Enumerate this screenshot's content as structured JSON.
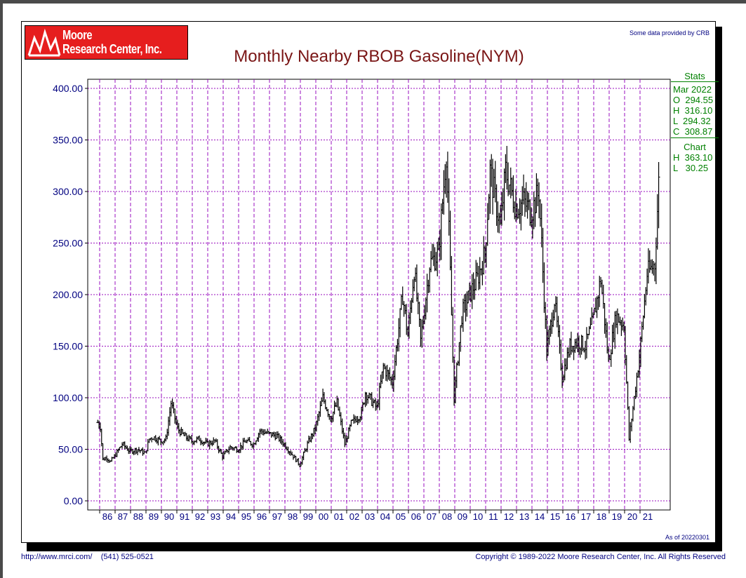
{
  "header": {
    "logo_line1": "Moore",
    "logo_line2": "Research Center, Inc.",
    "title": "Monthly Nearby RBOB Gasoline(NYM)",
    "credit": "Some data provided by CRB",
    "as_of": "As of 20220301"
  },
  "footer": {
    "url": "http://www.mrci.com/",
    "phone": "(541) 525-0521",
    "copyright": "Copyright © 1989-2022 Moore Research Center, Inc. All Rights Reserved"
  },
  "stats": {
    "title": "Stats",
    "period": "Mar 2022",
    "open": "O  294.55",
    "high": "H  316.10",
    "low": "L  294.32",
    "close": "C  308.87",
    "chart_label": "Chart",
    "chart_high": "H  363.10",
    "chart_low": "L   30.25"
  },
  "colors": {
    "title": "#7a1616",
    "axis_text": "#000080",
    "grid": "#9a0fbf",
    "bars": "#000000",
    "stats": "#008000",
    "logo_bg": "#e61e1e"
  },
  "chart_data": {
    "type": "ohlc",
    "title": "Monthly Nearby RBOB Gasoline(NYM)",
    "xlabel": "",
    "ylabel": "",
    "ylim": [
      0,
      400
    ],
    "y_ticks": [
      "0.00",
      "50.00",
      "100.00",
      "150.00",
      "200.00",
      "250.00",
      "300.00",
      "350.00",
      "400.00"
    ],
    "x_ticks": [
      "86",
      "87",
      "88",
      "89",
      "90",
      "91",
      "92",
      "93",
      "94",
      "95",
      "96",
      "97",
      "98",
      "99",
      "00",
      "01",
      "02",
      "03",
      "04",
      "05",
      "06",
      "07",
      "08",
      "09",
      "10",
      "11",
      "12",
      "13",
      "14",
      "15",
      "16",
      "17",
      "18",
      "19",
      "20",
      "21"
    ],
    "grid": true,
    "series_approx_monthly_close": [
      [
        1985,
        11,
        76
      ],
      [
        1986,
        1,
        72
      ],
      [
        1986,
        3,
        40
      ],
      [
        1986,
        6,
        42
      ],
      [
        1986,
        9,
        38
      ],
      [
        1987,
        1,
        45
      ],
      [
        1987,
        6,
        55
      ],
      [
        1987,
        12,
        48
      ],
      [
        1988,
        6,
        50
      ],
      [
        1988,
        12,
        46
      ],
      [
        1989,
        3,
        60
      ],
      [
        1989,
        6,
        62
      ],
      [
        1989,
        12,
        58
      ],
      [
        1990,
        4,
        60
      ],
      [
        1990,
        8,
        95
      ],
      [
        1990,
        10,
        85
      ],
      [
        1991,
        1,
        70
      ],
      [
        1991,
        6,
        63
      ],
      [
        1991,
        12,
        58
      ],
      [
        1992,
        6,
        60
      ],
      [
        1992,
        12,
        55
      ],
      [
        1993,
        6,
        58
      ],
      [
        1993,
        12,
        43
      ],
      [
        1994,
        6,
        52
      ],
      [
        1994,
        12,
        50
      ],
      [
        1995,
        6,
        58
      ],
      [
        1995,
        12,
        55
      ],
      [
        1996,
        5,
        68
      ],
      [
        1996,
        12,
        65
      ],
      [
        1997,
        6,
        63
      ],
      [
        1997,
        12,
        55
      ],
      [
        1998,
        6,
        45
      ],
      [
        1998,
        12,
        35
      ],
      [
        1999,
        6,
        55
      ],
      [
        1999,
        12,
        70
      ],
      [
        2000,
        6,
        100
      ],
      [
        2000,
        12,
        80
      ],
      [
        2001,
        5,
        95
      ],
      [
        2001,
        11,
        55
      ],
      [
        2002,
        4,
        75
      ],
      [
        2002,
        12,
        85
      ],
      [
        2003,
        3,
        105
      ],
      [
        2003,
        12,
        90
      ],
      [
        2004,
        5,
        130
      ],
      [
        2004,
        12,
        115
      ],
      [
        2005,
        8,
        200
      ],
      [
        2005,
        12,
        160
      ],
      [
        2006,
        5,
        225
      ],
      [
        2006,
        10,
        155
      ],
      [
        2007,
        5,
        230
      ],
      [
        2007,
        12,
        240
      ],
      [
        2008,
        6,
        340
      ],
      [
        2008,
        12,
        100
      ],
      [
        2009,
        6,
        180
      ],
      [
        2009,
        12,
        200
      ],
      [
        2010,
        6,
        215
      ],
      [
        2010,
        12,
        240
      ],
      [
        2011,
        4,
        320
      ],
      [
        2011,
        12,
        265
      ],
      [
        2012,
        4,
        320
      ],
      [
        2012,
        12,
        285
      ],
      [
        2013,
        6,
        290
      ],
      [
        2013,
        12,
        280
      ],
      [
        2014,
        6,
        300
      ],
      [
        2014,
        12,
        145
      ],
      [
        2015,
        6,
        195
      ],
      [
        2015,
        12,
        120
      ],
      [
        2016,
        6,
        150
      ],
      [
        2016,
        12,
        155
      ],
      [
        2017,
        6,
        150
      ],
      [
        2017,
        12,
        175
      ],
      [
        2018,
        6,
        215
      ],
      [
        2018,
        12,
        135
      ],
      [
        2019,
        6,
        180
      ],
      [
        2019,
        12,
        170
      ],
      [
        2020,
        4,
        60
      ],
      [
        2020,
        12,
        140
      ],
      [
        2021,
        6,
        220
      ],
      [
        2021,
        12,
        230
      ],
      [
        2022,
        3,
        308
      ]
    ]
  }
}
